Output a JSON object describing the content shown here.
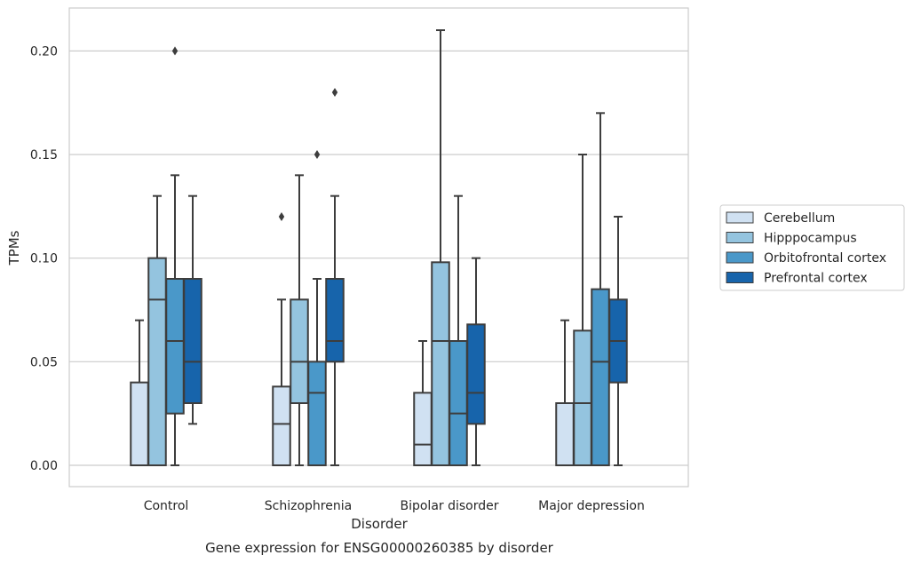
{
  "chart_data": {
    "type": "box",
    "title": "",
    "xlabel": "Disorder",
    "ylabel": "TPMs",
    "caption": "Gene expression for ENSG00000260385 by disorder",
    "ylim": [
      -0.01,
      0.22
    ],
    "yticks": [
      "0.00",
      "0.05",
      "0.10",
      "0.15",
      "0.20"
    ],
    "grid": "horizontal",
    "legend_position": "right",
    "categories": [
      "Control",
      "Schizophrenia",
      "Bipolar disorder",
      "Major depression"
    ],
    "series": [
      {
        "name": "Cerebellum",
        "color": "#d0e1f2",
        "boxes": [
          {
            "whislo": 0.0,
            "q1": 0.0,
            "med": 0.0,
            "q3": 0.04,
            "whishi": 0.07,
            "fliers": []
          },
          {
            "whislo": 0.0,
            "q1": 0.0,
            "med": 0.02,
            "q3": 0.038,
            "whishi": 0.08,
            "fliers": [
              0.12
            ]
          },
          {
            "whislo": 0.0,
            "q1": 0.0,
            "med": 0.01,
            "q3": 0.035,
            "whishi": 0.06,
            "fliers": []
          },
          {
            "whislo": 0.0,
            "q1": 0.0,
            "med": 0.0,
            "q3": 0.03,
            "whishi": 0.07,
            "fliers": []
          }
        ]
      },
      {
        "name": "Hipppocampus",
        "color": "#94c4df",
        "boxes": [
          {
            "whislo": 0.0,
            "q1": 0.0,
            "med": 0.08,
            "q3": 0.1,
            "whishi": 0.13,
            "fliers": []
          },
          {
            "whislo": 0.0,
            "q1": 0.03,
            "med": 0.05,
            "q3": 0.08,
            "whishi": 0.14,
            "fliers": []
          },
          {
            "whislo": 0.0,
            "q1": 0.0,
            "med": 0.06,
            "q3": 0.098,
            "whishi": 0.21,
            "fliers": []
          },
          {
            "whislo": 0.0,
            "q1": 0.0,
            "med": 0.03,
            "q3": 0.065,
            "whishi": 0.15,
            "fliers": []
          }
        ]
      },
      {
        "name": "Orbitofrontal cortex",
        "color": "#4a98c9",
        "boxes": [
          {
            "whislo": 0.0,
            "q1": 0.025,
            "med": 0.06,
            "q3": 0.09,
            "whishi": 0.14,
            "fliers": [
              0.2
            ]
          },
          {
            "whislo": 0.0,
            "q1": 0.0,
            "med": 0.035,
            "q3": 0.05,
            "whishi": 0.09,
            "fliers": [
              0.15
            ]
          },
          {
            "whislo": 0.0,
            "q1": 0.0,
            "med": 0.025,
            "q3": 0.06,
            "whishi": 0.13,
            "fliers": []
          },
          {
            "whislo": 0.0,
            "q1": 0.0,
            "med": 0.05,
            "q3": 0.085,
            "whishi": 0.17,
            "fliers": []
          }
        ]
      },
      {
        "name": "Prefrontal cortex",
        "color": "#1764ab",
        "boxes": [
          {
            "whislo": 0.02,
            "q1": 0.03,
            "med": 0.05,
            "q3": 0.09,
            "whishi": 0.13,
            "fliers": []
          },
          {
            "whislo": 0.0,
            "q1": 0.05,
            "med": 0.06,
            "q3": 0.09,
            "whishi": 0.13,
            "fliers": [
              0.18
            ]
          },
          {
            "whislo": 0.0,
            "q1": 0.02,
            "med": 0.035,
            "q3": 0.068,
            "whishi": 0.1,
            "fliers": []
          },
          {
            "whislo": 0.0,
            "q1": 0.04,
            "med": 0.06,
            "q3": 0.08,
            "whishi": 0.12,
            "fliers": []
          }
        ]
      }
    ]
  }
}
